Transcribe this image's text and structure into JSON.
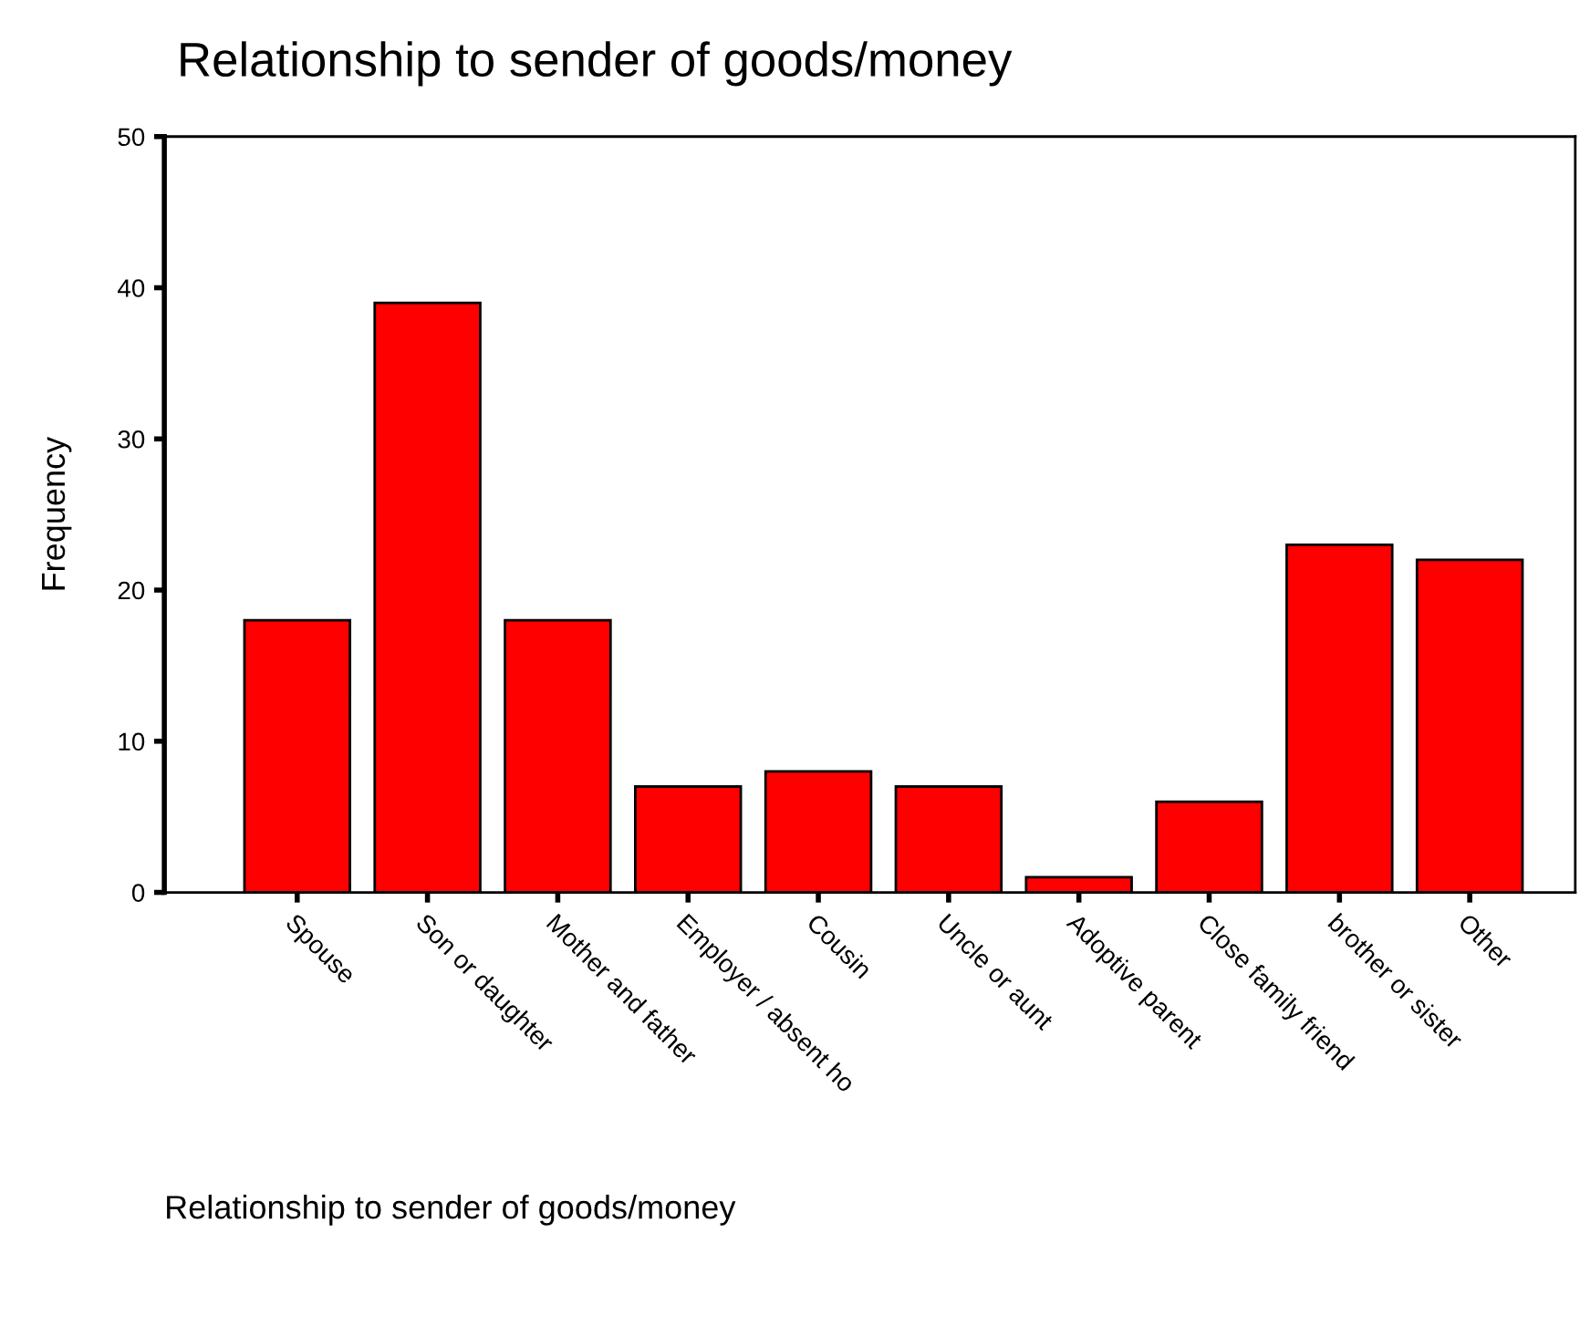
{
  "chart_data": {
    "type": "bar",
    "title": "Relationship to sender of goods/money",
    "xlabel": "Relationship to sender of goods/money",
    "ylabel": "Frequency",
    "categories": [
      "Spouse",
      "Son or daughter",
      "Mother and father",
      "Employer / absent ho",
      "Cousin",
      "Uncle or aunt",
      "Adoptive parent",
      "Close family friend",
      "brother or sister",
      "Other"
    ],
    "values": [
      18,
      39,
      18,
      7,
      8,
      7,
      1,
      6,
      23,
      22
    ],
    "color": "#ff0000",
    "ylim": [
      0,
      50
    ],
    "yticks": [
      0,
      10,
      20,
      30,
      40,
      50
    ],
    "grid": false,
    "legend": false
  }
}
